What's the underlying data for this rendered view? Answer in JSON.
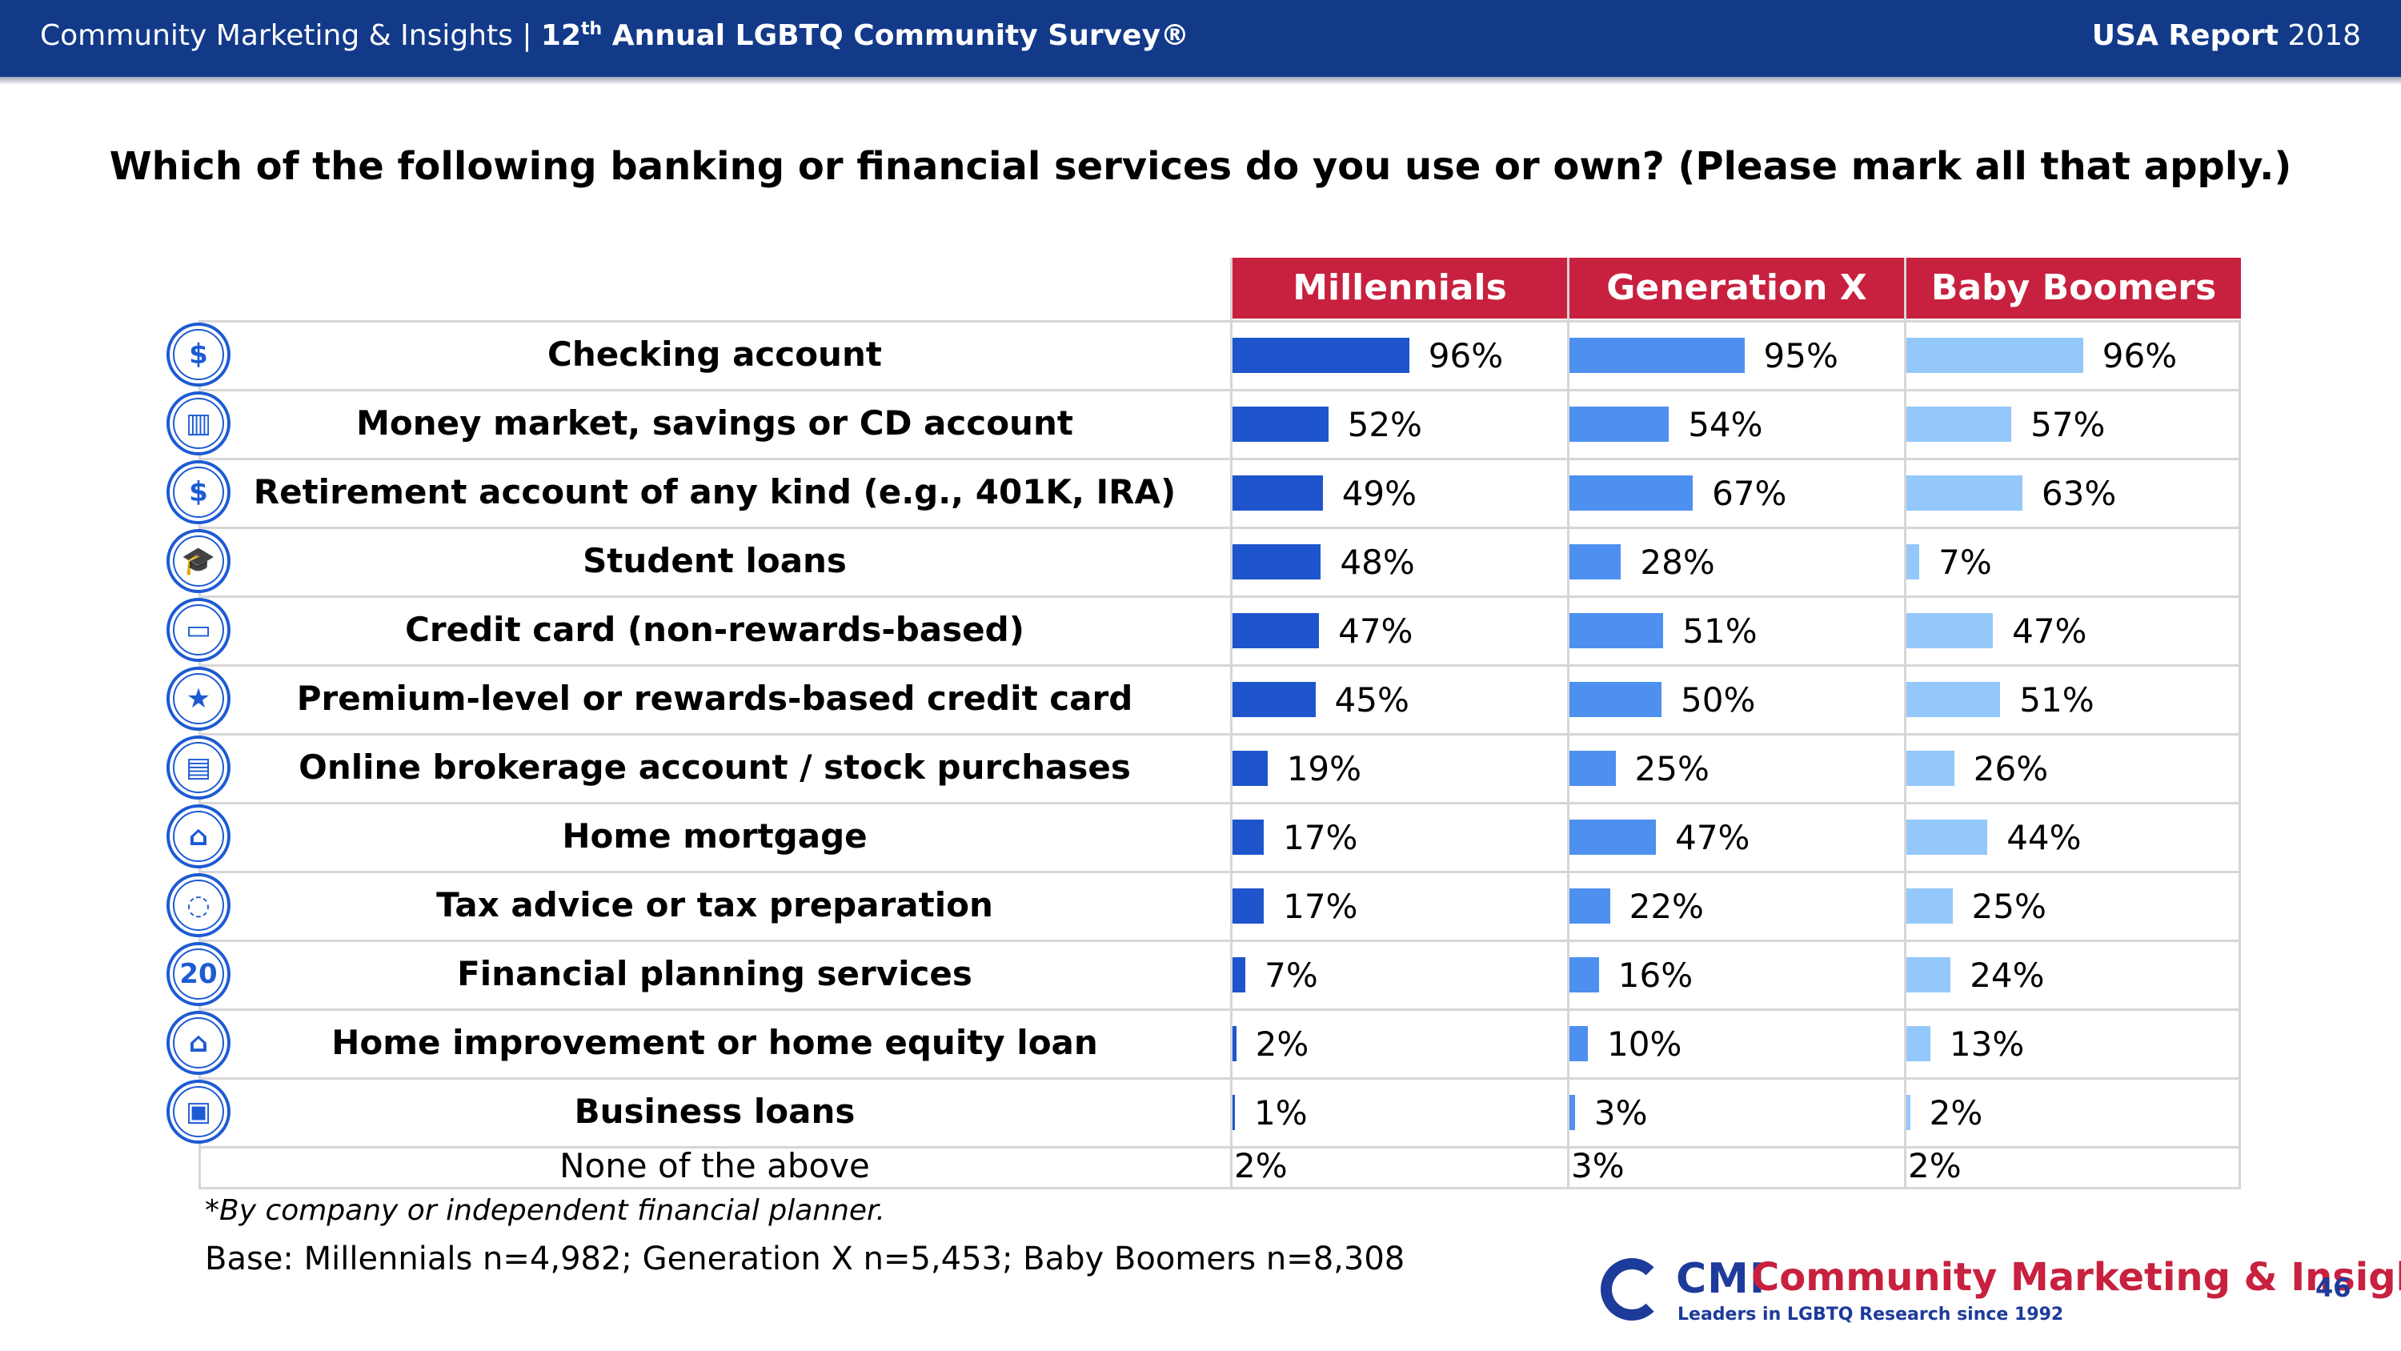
{
  "header": {
    "left_plain": "Community Marketing & Insights  |  ",
    "left_bold_pre": "12",
    "left_sup": "th",
    "left_bold_post": " Annual LGBTQ Community Survey®",
    "right_bold": "USA Report",
    "right_plain": " 2018"
  },
  "question": "Which of the following banking or financial services do you use or own? (Please mark all that apply.)",
  "chart_data": {
    "type": "bar",
    "orientation": "horizontal",
    "categories": [
      "Checking account",
      "Money market, savings or CD account",
      "Retirement account of any kind (e.g., 401K, IRA)",
      "Student loans",
      "Credit card (non-rewards-based)",
      "Premium-level or rewards-based credit card",
      "Online brokerage account /  stock purchases",
      "Home mortgage",
      "Tax advice or tax preparation",
      "Financial planning services",
      "Home improvement or home equity loan",
      "Business loans"
    ],
    "series": [
      {
        "name": "Millennials",
        "color": "#1f55cc",
        "values": [
          96,
          52,
          49,
          48,
          47,
          45,
          19,
          17,
          17,
          7,
          2,
          1
        ]
      },
      {
        "name": "Generation X",
        "color": "#4d90f0",
        "values": [
          95,
          54,
          67,
          28,
          51,
          50,
          25,
          47,
          22,
          16,
          10,
          3
        ]
      },
      {
        "name": "Baby Boomers",
        "color": "#94c8fb",
        "values": [
          96,
          57,
          63,
          7,
          47,
          51,
          26,
          44,
          25,
          24,
          13,
          2
        ]
      }
    ],
    "unit": "%",
    "xlim": [
      0,
      100
    ]
  },
  "none_row": {
    "label": "None of the above",
    "values": [
      "2%",
      "3%",
      "2%"
    ]
  },
  "icons": [
    "dollar-cycle-icon",
    "coin-stack-icon",
    "money-bag-icon",
    "graduation-cap-icon",
    "credit-card-icon",
    "rewards-card-icon",
    "monitor-chart-icon",
    "house-icon",
    "speech-bubbles-icon",
    "calendar-20-icon",
    "house-plus-icon",
    "briefcase-icon"
  ],
  "calendar_number": "20",
  "footnote": "*By company or independent financial planner.",
  "base": "Base: Millennials n=4,982; Generation X n=5,453; Baby Boomers n=8,308",
  "logo": {
    "short": "CMI",
    "name": "Community Marketing & Insights",
    "tagline": "Leaders in LGBTQ Research since 1992"
  },
  "page_number": "46"
}
